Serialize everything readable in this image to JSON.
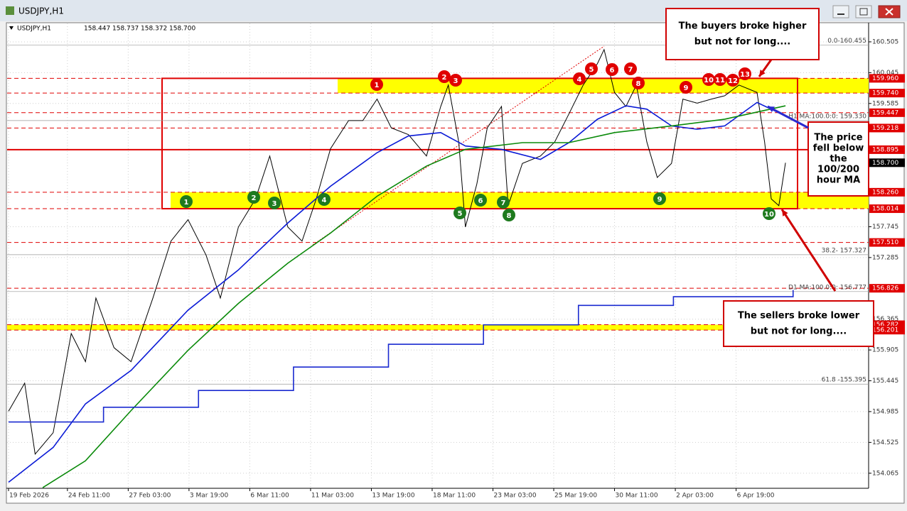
{
  "window": {
    "title": "USDJPY,H1"
  },
  "chart_data": {
    "type": "line",
    "symbol_info": "USDJPY,H1",
    "ohlc": [
      158.447,
      158.737,
      158.372,
      {
        "value": 158.7,
        "label": "158.700"
      }
    ],
    "xlim": [
      0,
      907
    ],
    "xticks": [
      {
        "value": 0,
        "label": "19 Feb 2026"
      },
      {
        "value": 62,
        "label": "24 Feb 11:00"
      },
      {
        "value": 126,
        "label": "27 Feb 03:00"
      },
      {
        "value": 190,
        "label": "3 Mar 19:00"
      },
      {
        "value": 254,
        "label": "6 Mar 11:00"
      },
      {
        "value": 318,
        "label": "11 Mar 03:00"
      },
      {
        "value": 382,
        "label": "13 Mar 19:00"
      },
      {
        "value": 446,
        "label": "18 Mar 11:00"
      },
      {
        "value": 510,
        "label": "23 Mar 03:00"
      },
      {
        "value": 574,
        "label": "25 Mar 19:00"
      },
      {
        "value": 638,
        "label": "30 Mar 11:00"
      },
      {
        "value": 702,
        "label": "2 Apr 03:00"
      },
      {
        "value": 766,
        "label": "6 Apr 19:00"
      }
    ],
    "ylim": [
      153.84,
      160.78
    ],
    "yticks": [
      160.505,
      160.045,
      159.585,
      157.745,
      157.285,
      156.365,
      155.905,
      155.445,
      154.985,
      154.525,
      154.065
    ],
    "grid": true,
    "series": [
      {
        "color": "#000000",
        "x": [
          0,
          17,
          28,
          47,
          66,
          81,
          92,
          111,
          129,
          152,
          171,
          189,
          208,
          223,
          242,
          260,
          275,
          294,
          309,
          324,
          339,
          358,
          373,
          388,
          403,
          421,
          440,
          455,
          463,
          474,
          481,
          493,
          504,
          519,
          526,
          541,
          560,
          575,
          590,
          605,
          620,
          627,
          638,
          650,
          661,
          672,
          683,
          698,
          710,
          725,
          740,
          754,
          769,
          788,
          796,
          803,
          811,
          818
        ],
        "values": [
          154.99,
          155.41,
          154.35,
          154.67,
          156.15,
          155.73,
          156.68,
          155.94,
          155.73,
          156.68,
          157.53,
          157.85,
          157.32,
          156.68,
          157.74,
          158.16,
          158.8,
          157.74,
          157.53,
          158.16,
          158.91,
          159.33,
          159.33,
          159.65,
          159.22,
          159.12,
          158.8,
          159.54,
          159.86,
          159.01,
          157.74,
          158.38,
          159.22,
          159.54,
          158.06,
          158.69,
          158.8,
          159.01,
          159.43,
          159.86,
          160.18,
          160.39,
          159.75,
          159.54,
          159.86,
          159.01,
          158.48,
          158.69,
          159.65,
          159.59,
          159.65,
          159.7,
          159.86,
          159.75,
          159.01,
          158.16,
          158.06,
          158.7
        ]
      },
      {
        "color": "#0a1ad6",
        "x": [
          0,
          47,
          81,
          129,
          189,
          242,
          294,
          339,
          388,
          421,
          455,
          481,
          519,
          560,
          590,
          620,
          650,
          672,
          698,
          725,
          754,
          788,
          818
        ],
        "values": [
          153.93,
          154.45,
          155.1,
          155.6,
          156.5,
          157.1,
          157.8,
          158.35,
          158.85,
          159.1,
          159.15,
          158.95,
          158.9,
          158.75,
          159.0,
          159.35,
          159.55,
          159.5,
          159.25,
          159.2,
          159.25,
          159.6,
          159.4
        ]
      },
      {
        "color": "#0a8a0a",
        "x": [
          36,
          81,
          129,
          189,
          242,
          294,
          339,
          388,
          440,
          481,
          541,
          590,
          638,
          698,
          754,
          818
        ],
        "values": [
          153.85,
          154.25,
          155.0,
          155.9,
          156.6,
          157.2,
          157.65,
          158.2,
          158.65,
          158.9,
          159.0,
          159.0,
          159.15,
          159.25,
          159.35,
          159.55
        ]
      },
      {
        "color": "#1a2ad0",
        "step": true,
        "x": [
          0,
          100,
          200,
          300,
          400,
          500,
          600,
          700,
          826
        ],
        "values": [
          154.83,
          155.05,
          155.3,
          155.65,
          155.99,
          156.28,
          156.57,
          156.7,
          156.8
        ]
      }
    ],
    "levels": [
      {
        "value": 159.96,
        "label": "159.960",
        "style": "dash",
        "color": "#e00000"
      },
      {
        "value": 159.74,
        "label": "159.740",
        "style": "dash",
        "color": "#e00000"
      },
      {
        "value": 159.447,
        "label": "159.447",
        "style": "dash",
        "color": "#e00000"
      },
      {
        "value": 159.218,
        "label": "159.218",
        "style": "dash",
        "color": "#e00000"
      },
      {
        "value": 158.895,
        "label": "158.895",
        "style": "solid",
        "color": "#e00000"
      },
      {
        "value": 158.7,
        "label": "158.700",
        "style": "current",
        "color": "#000000"
      },
      {
        "value": 158.26,
        "label": "158.260",
        "style": "dash",
        "color": "#e00000"
      },
      {
        "value": 158.014,
        "label": "158.014",
        "style": "dash",
        "color": "#e00000"
      },
      {
        "value": 157.51,
        "label": "157.510",
        "style": "dash",
        "color": "#e00000"
      },
      {
        "value": 156.826,
        "label": "156.826",
        "style": "dash",
        "color": "#e00000"
      },
      {
        "value": 156.282,
        "label": "156.282",
        "style": "dash",
        "color": "#e00000"
      },
      {
        "value": 156.201,
        "label": "156.201",
        "style": "dash",
        "color": "#e00000"
      }
    ],
    "line_labels": [
      {
        "value": 160.455,
        "label": "0.0-160.455"
      },
      {
        "value": 157.327,
        "label": "38.2- 157.327"
      },
      {
        "value": 155.395,
        "label": "61.8 -155.395"
      },
      {
        "value": 159.33,
        "label": "H1 MA:100.0:0: 159.330"
      },
      {
        "value": 156.777,
        "label": "D1 MA:100.0:0: 156.777"
      }
    ],
    "markers_top": [
      "1",
      "2",
      "3",
      "4",
      "5",
      "6",
      "7",
      "8",
      "9",
      "10",
      "11",
      "12",
      "13"
    ],
    "markers_bottom": [
      "1",
      "2",
      "3",
      "4",
      "5",
      "6",
      "7",
      "8",
      "9",
      "10"
    ],
    "callouts": [
      {
        "lines": [
          "The buyers broke higher",
          "but not for long...."
        ]
      },
      {
        "lines": [
          "The price",
          "fell below",
          "the",
          "100/200",
          "hour MA"
        ]
      },
      {
        "lines": [
          "The sellers broke lower",
          "but not for long...."
        ]
      }
    ]
  }
}
